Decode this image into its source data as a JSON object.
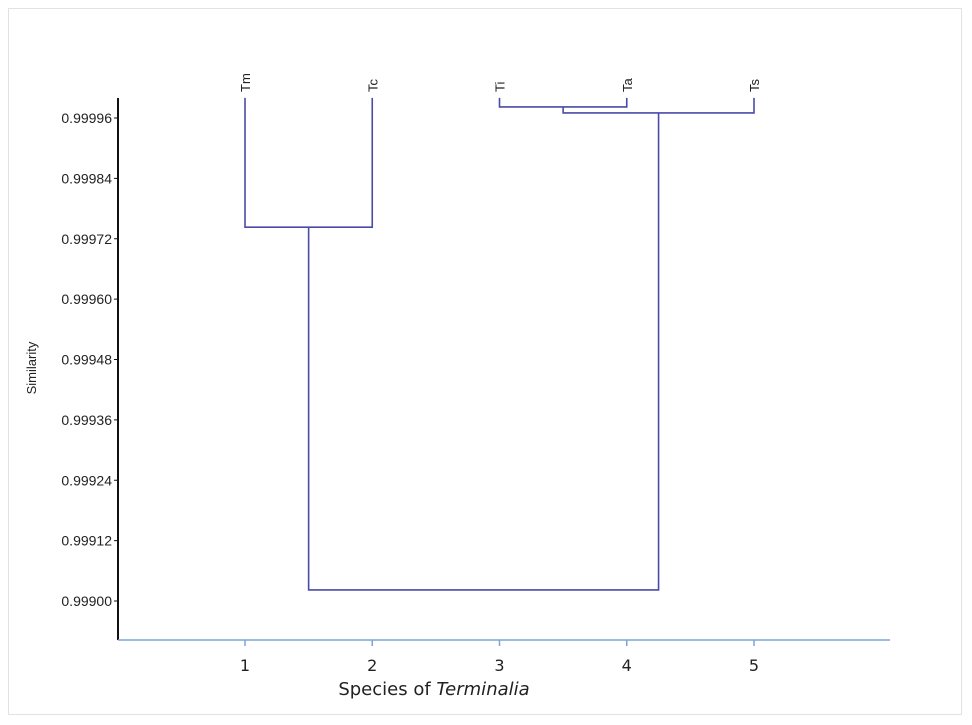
{
  "chart_data": {
    "type": "dendrogram",
    "ylabel": "Similarity",
    "xlabel_prefix": "Species of ",
    "xlabel_italic": "Terminalia",
    "y_ticks": [
      "0.99996",
      "0.99984",
      "0.99972",
      "0.99960",
      "0.99948",
      "0.99936",
      "0.99924",
      "0.99912",
      "0.99900"
    ],
    "y_tick_values": [
      0.99996,
      0.99984,
      0.99972,
      0.9996,
      0.99948,
      0.99936,
      0.99924,
      0.99912,
      0.999
    ],
    "x_ticks": [
      "1",
      "2",
      "3",
      "4",
      "5"
    ],
    "x_tick_values": [
      1,
      2,
      3,
      4,
      5
    ],
    "leaves": [
      {
        "label": "Tm",
        "position": 1
      },
      {
        "label": "Tc",
        "position": 2
      },
      {
        "label": "Ti",
        "position": 3
      },
      {
        "label": "Ta",
        "position": 4
      },
      {
        "label": "Ts",
        "position": 5
      }
    ],
    "merges": [
      {
        "left": "Ti",
        "right": "Ta",
        "similarity": 0.999982
      },
      {
        "left": "Ti+Ta",
        "right": "Ts",
        "similarity": 0.99997
      },
      {
        "left": "Tm",
        "right": "Tc",
        "similarity": 0.999743
      },
      {
        "left": "Tm+Tc",
        "right": "Ti+Ta+Ts",
        "similarity": 0.999022
      }
    ],
    "leaf_top_similarity": 1.0,
    "ylim": [
      0.99893,
      1.00004
    ],
    "line_color": "#4a4aa8",
    "axis_color": "#7aa6d6"
  }
}
